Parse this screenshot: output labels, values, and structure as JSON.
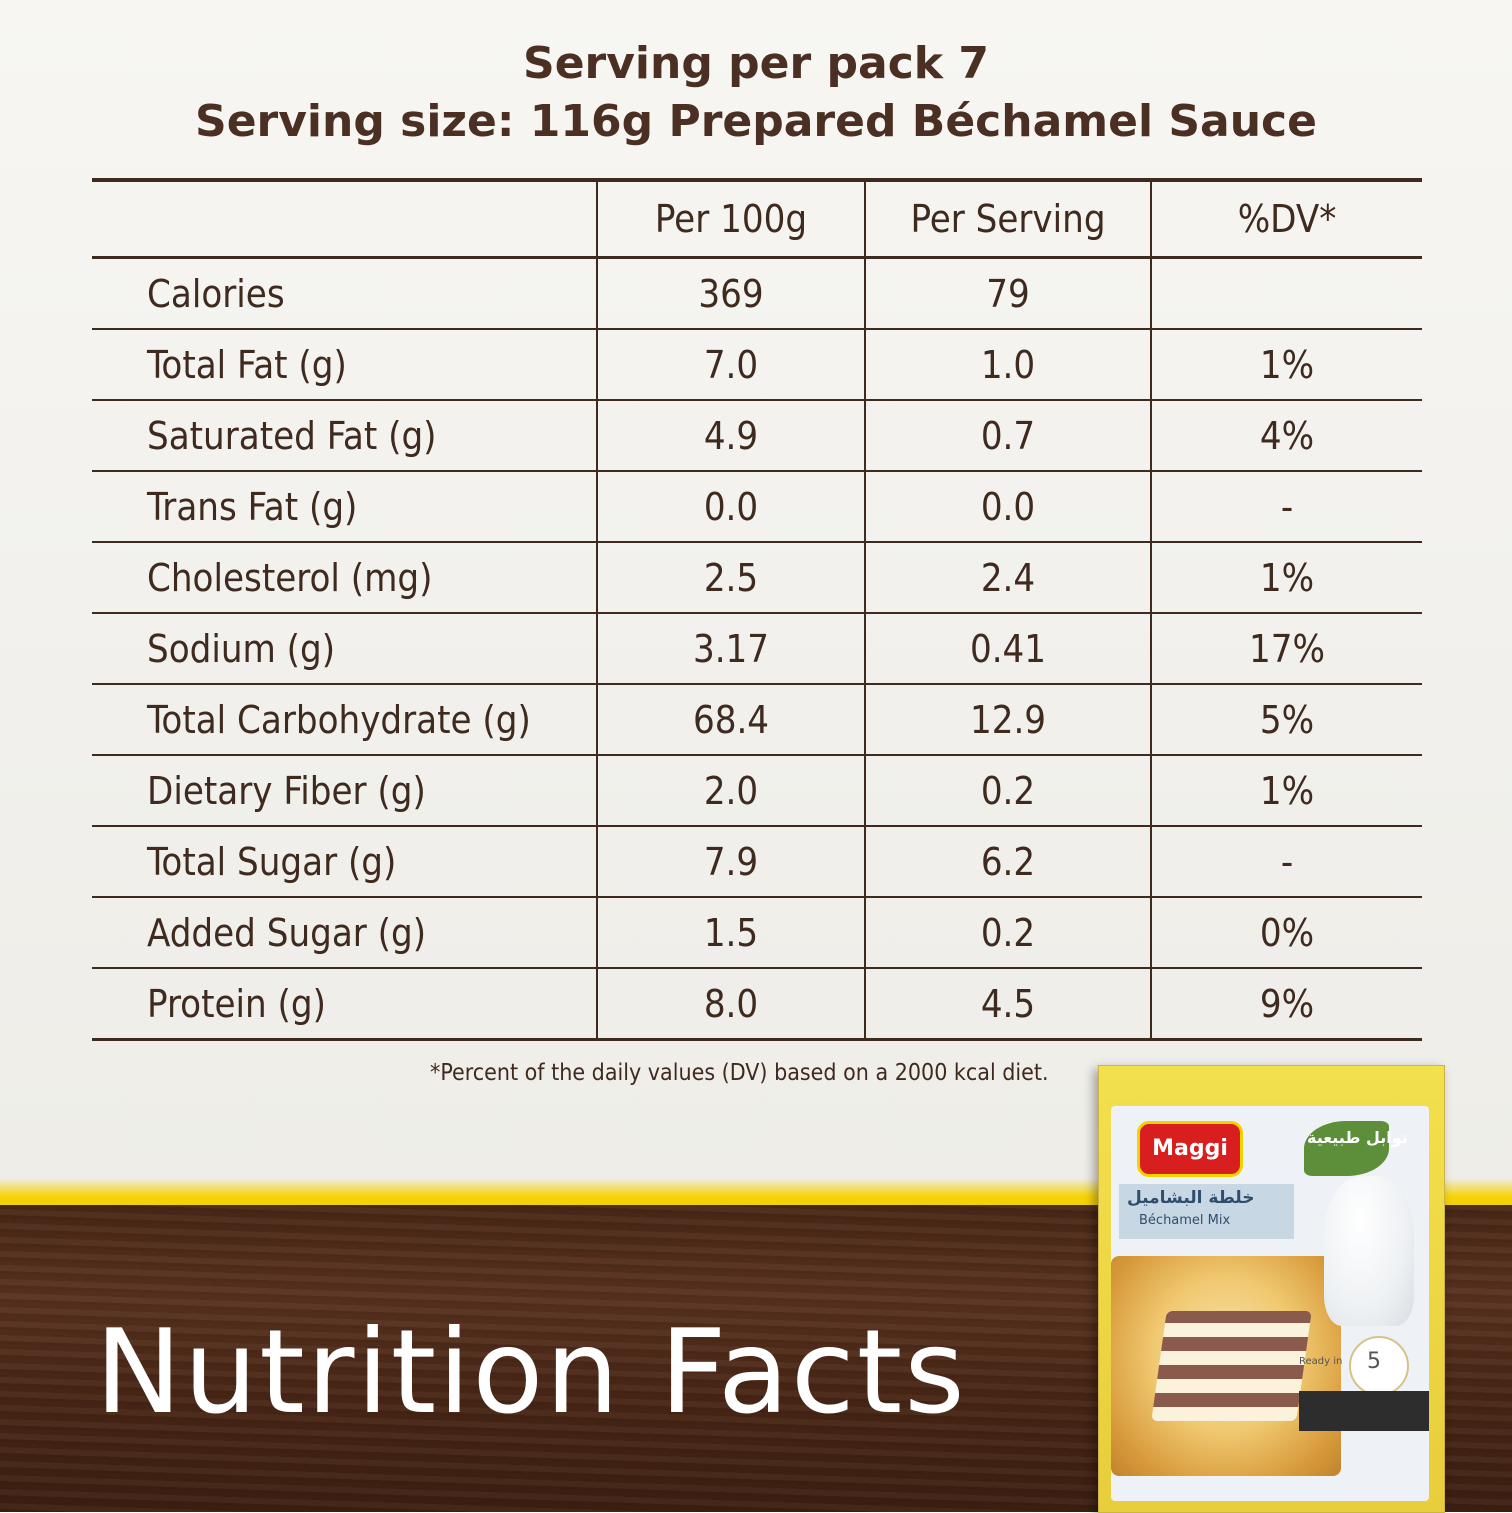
{
  "header": {
    "line1": "Serving per pack 7",
    "line2": "Serving size: 116g Prepared Béchamel Sauce"
  },
  "table": {
    "columns": [
      "",
      "Per 100g",
      "Per Serving",
      "%DV*"
    ],
    "rows": [
      {
        "name": "Calories",
        "per100": "369",
        "perServing": "79",
        "dv": ""
      },
      {
        "name": "Total Fat (g)",
        "per100": "7.0",
        "perServing": "1.0",
        "dv": "1%"
      },
      {
        "name": "Saturated Fat (g)",
        "per100": "4.9",
        "perServing": "0.7",
        "dv": "4%"
      },
      {
        "name": "Trans Fat (g)",
        "per100": "0.0",
        "perServing": "0.0",
        "dv": "-"
      },
      {
        "name": "Cholesterol (mg)",
        "per100": "2.5",
        "perServing": "2.4",
        "dv": "1%"
      },
      {
        "name": "Sodium (g)",
        "per100": "3.17",
        "perServing": "0.41",
        "dv": "17%"
      },
      {
        "name": "Total Carbohydrate (g)",
        "per100": "68.4",
        "perServing": "12.9",
        "dv": "5%"
      },
      {
        "name": "Dietary Fiber (g)",
        "per100": "2.0",
        "perServing": "0.2",
        "dv": "1%"
      },
      {
        "name": "Total Sugar (g)",
        "per100": "7.9",
        "perServing": "6.2",
        "dv": "-"
      },
      {
        "name": "Added Sugar (g)",
        "per100": "1.5",
        "perServing": "0.2",
        "dv": "0%"
      },
      {
        "name": "Protein (g)",
        "per100": "8.0",
        "perServing": "4.5",
        "dv": "9%"
      }
    ]
  },
  "footnote": "*Percent of the daily values (DV) based on a 2000 kcal diet.",
  "title": "Nutrition Facts",
  "pack": {
    "brand": "Maggi",
    "product_en": "Béchamel Mix",
    "product_ar": "خلطة البشاميل",
    "leaf_ar": "توابل طبيعية",
    "ready_time": "5",
    "ready_label": "Ready in"
  },
  "colors": {
    "text": "#3f2a20",
    "wood": "#4b2816",
    "yellow": "#f2cb00",
    "brand_red": "#d81e1e"
  }
}
